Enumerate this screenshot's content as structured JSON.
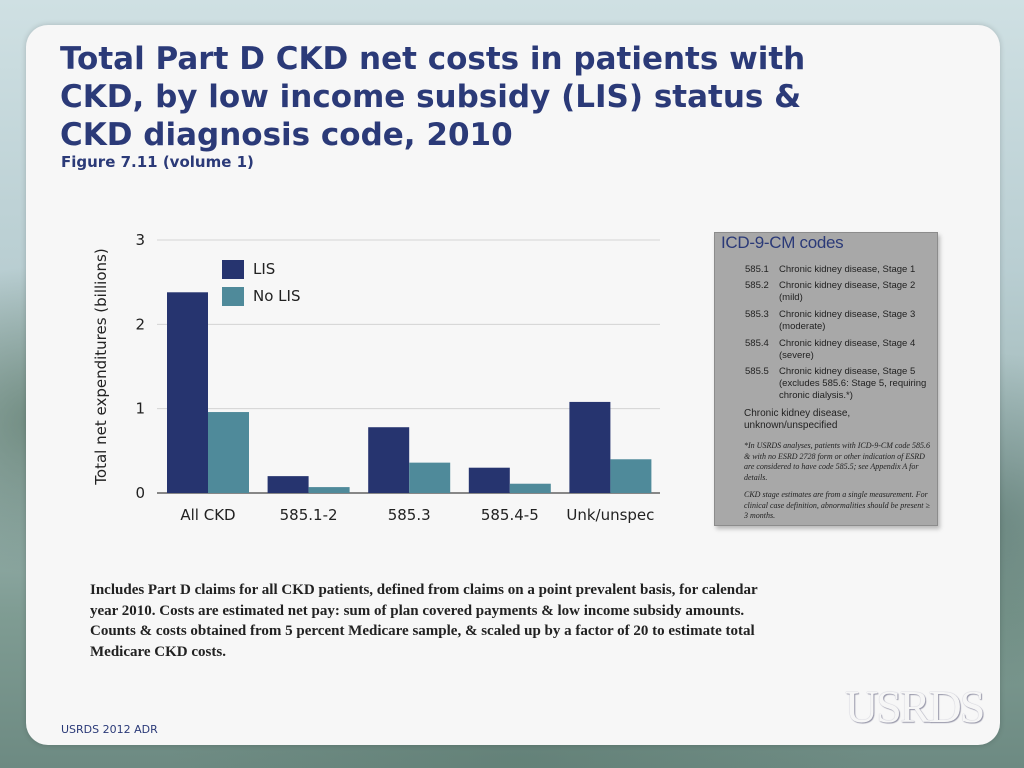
{
  "slide": {
    "title": "Total Part D CKD net costs in patients with CKD, by low income subsidy (LIS) status & CKD diagnosis code, 2010",
    "subtitle": "Figure 7.11 (volume 1)",
    "footnote": "Includes Part D claims for all CKD patients, defined from claims on a point prevalent basis, for calendar year 2010. Costs are estimated net pay: sum of plan covered payments & low income subsidy amounts. Counts & costs obtained from 5 percent Medicare sample, & scaled up by a factor of 20 to estimate total Medicare CKD costs.",
    "footer": "USRDS 2012 ADR",
    "logo": "USRDS"
  },
  "chart_data": {
    "type": "bar",
    "title": "",
    "xlabel": "",
    "ylabel": "Total net expenditures (billions)",
    "categories": [
      "All CKD",
      "585.1-2",
      "585.3",
      "585.4-5",
      "Unk/unspec"
    ],
    "series": [
      {
        "name": "LIS",
        "color": "#26346f",
        "values": [
          2.38,
          0.2,
          0.78,
          0.3,
          1.08
        ]
      },
      {
        "name": "No LIS",
        "color": "#4f8a9a",
        "values": [
          0.96,
          0.07,
          0.36,
          0.11,
          0.4
        ]
      }
    ],
    "ylim": [
      0,
      3
    ],
    "yticks": [
      0,
      1,
      2,
      3
    ],
    "grid": true,
    "legend_position": "top-left"
  },
  "codes_panel": {
    "title": "ICD-9-CM codes",
    "codes": [
      {
        "code": "585.1",
        "desc": "Chronic kidney disease, Stage 1"
      },
      {
        "code": "585.2",
        "desc": "Chronic kidney disease, Stage 2 (mild)"
      },
      {
        "code": "585.3",
        "desc": "Chronic kidney disease, Stage 3 (moderate)"
      },
      {
        "code": "585.4",
        "desc": "Chronic kidney disease, Stage 4 (severe)"
      },
      {
        "code": "585.5",
        "desc": "Chronic kidney disease, Stage 5 (excludes 585.6: Stage 5, requiring chronic dialysis.*)"
      }
    ],
    "unknown": "Chronic kidney disease, unknown/unspecified",
    "note1": "*In USRDS analyses, patients with ICD-9-CM code 585.6 & with no ESRD 2728 form or other indication of ESRD are considered to have code 585.5; see Appendix A for details.",
    "note2": "CKD stage estimates are from a single measurement. For clinical case definition, abnormalities should be present ≥ 3 months."
  }
}
